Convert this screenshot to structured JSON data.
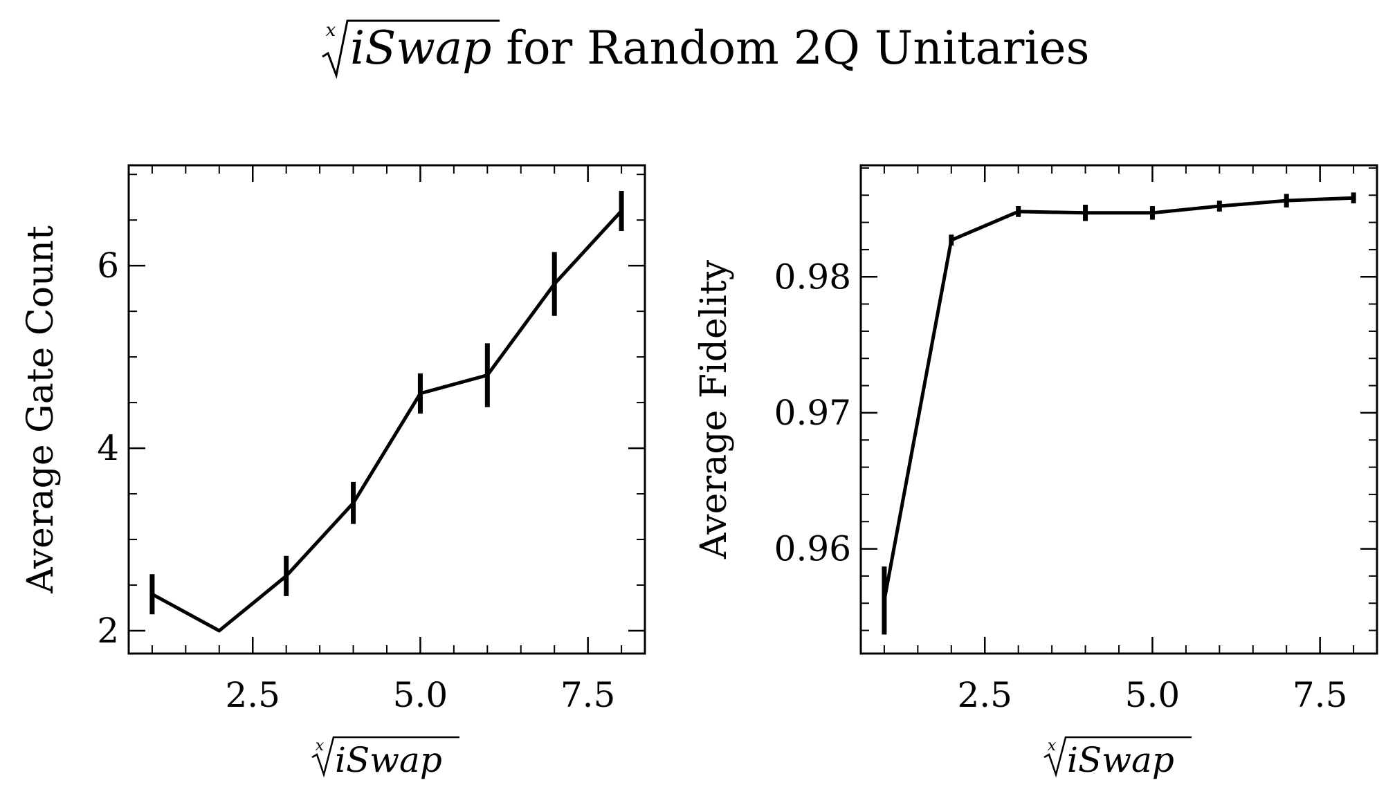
{
  "figure": {
    "title_main": "iSwap",
    "title_rest": " for Random 2Q Unitaries",
    "root_index": "x"
  },
  "chart_data": [
    {
      "type": "line",
      "title": "",
      "xlabel": "iSwap",
      "xlabel_root_index": "x",
      "ylabel": "Average Gate Count",
      "xlim": [
        0.65,
        8.35
      ],
      "ylim": [
        1.75,
        7.1
      ],
      "x_ticks": [
        2.5,
        5.0,
        7.5
      ],
      "x_tick_labels": [
        "2.5",
        "5.0",
        "7.5"
      ],
      "y_ticks": [
        2,
        4,
        6
      ],
      "y_tick_labels": [
        "2",
        "4",
        "6"
      ],
      "x_minor_step": 0.5,
      "y_minor_step": 0.5,
      "grid": false,
      "series": [
        {
          "x": [
            1,
            2,
            3,
            4,
            5,
            6,
            7,
            8
          ],
          "y": [
            2.4,
            2.0,
            2.6,
            3.4,
            4.6,
            4.8,
            5.8,
            6.6
          ],
          "yerr": [
            0.22,
            0.0,
            0.22,
            0.23,
            0.22,
            0.35,
            0.35,
            0.22
          ],
          "color": "#000000"
        }
      ]
    },
    {
      "type": "line",
      "title": "",
      "xlabel": "iSwap",
      "xlabel_root_index": "x",
      "ylabel": "Average Fidelity",
      "xlim": [
        0.65,
        8.35
      ],
      "ylim": [
        0.9523,
        0.9882
      ],
      "x_ticks": [
        2.5,
        5.0,
        7.5
      ],
      "x_tick_labels": [
        "2.5",
        "5.0",
        "7.5"
      ],
      "y_ticks": [
        0.96,
        0.97,
        0.98
      ],
      "y_tick_labels": [
        "0.96",
        "0.97",
        "0.98"
      ],
      "x_minor_step": 0.5,
      "y_minor_step": 0.002,
      "grid": false,
      "series": [
        {
          "x": [
            1,
            2,
            3,
            4,
            5,
            6,
            7,
            8
          ],
          "y": [
            0.9562,
            0.9827,
            0.9848,
            0.9847,
            0.9847,
            0.9852,
            0.9856,
            0.9858
          ],
          "yerr": [
            0.0025,
            0.0004,
            0.0004,
            0.0006,
            0.0005,
            0.0004,
            0.0005,
            0.0004
          ],
          "color": "#000000"
        }
      ]
    }
  ]
}
